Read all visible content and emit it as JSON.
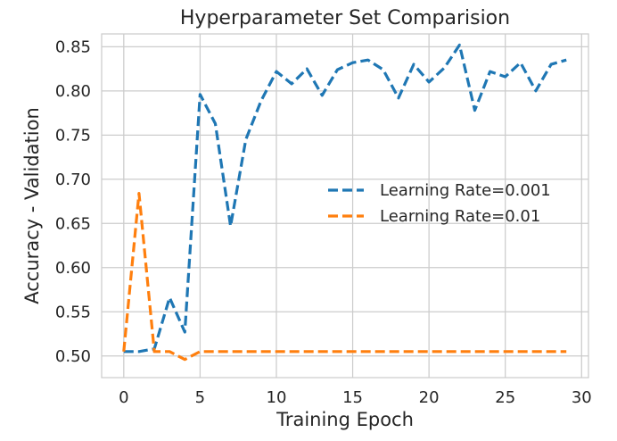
{
  "chart_data": {
    "type": "line",
    "title": "Hyperparameter Set Comparision",
    "xlabel": "Training Epoch",
    "ylabel": "Accuracy - Validation",
    "xlim": [
      -1.45,
      30.45
    ],
    "ylim": [
      0.4755,
      0.8645
    ],
    "xticks": [
      0,
      5,
      10,
      15,
      20,
      25,
      30
    ],
    "yticks": [
      0.5,
      0.55,
      0.6,
      0.65,
      0.7,
      0.75,
      0.8,
      0.85
    ],
    "ytick_labels": [
      "0.50",
      "0.55",
      "0.60",
      "0.65",
      "0.70",
      "0.75",
      "0.80",
      "0.85"
    ],
    "grid": true,
    "legend_position": "center-right",
    "line_style": "dashed",
    "x": [
      0,
      1,
      2,
      3,
      4,
      5,
      6,
      7,
      8,
      9,
      10,
      11,
      12,
      13,
      14,
      15,
      16,
      17,
      18,
      19,
      20,
      21,
      22,
      23,
      24,
      25,
      26,
      27,
      28,
      29
    ],
    "series": [
      {
        "name": "Learning Rate=0.001",
        "color": "#1f77b4",
        "values": [
          0.505,
          0.505,
          0.508,
          0.566,
          0.527,
          0.796,
          0.763,
          0.647,
          0.745,
          0.789,
          0.822,
          0.808,
          0.825,
          0.795,
          0.824,
          0.832,
          0.835,
          0.824,
          0.792,
          0.83,
          0.81,
          0.826,
          0.852,
          0.778,
          0.822,
          0.816,
          0.832,
          0.8,
          0.83,
          0.835
        ]
      },
      {
        "name": "Learning Rate=0.01",
        "color": "#ff7f0e",
        "values": [
          0.505,
          0.684,
          0.505,
          0.505,
          0.496,
          0.505,
          0.505,
          0.505,
          0.505,
          0.505,
          0.505,
          0.505,
          0.505,
          0.505,
          0.505,
          0.505,
          0.505,
          0.505,
          0.505,
          0.505,
          0.505,
          0.505,
          0.505,
          0.505,
          0.505,
          0.505,
          0.505,
          0.505,
          0.505,
          0.505
        ]
      }
    ]
  }
}
